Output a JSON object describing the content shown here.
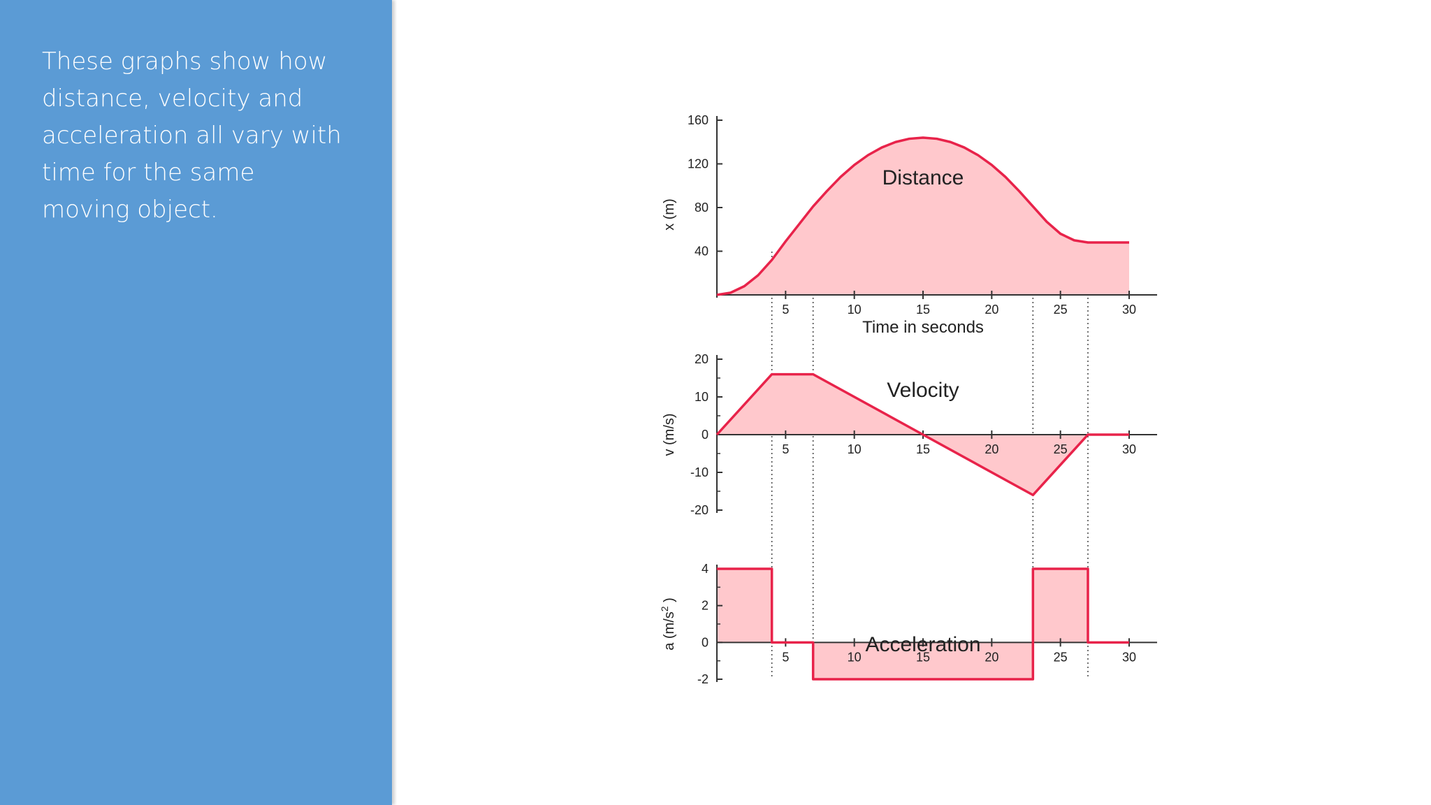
{
  "caption": "These graphs show how distance, velocity and acceleration all vary with time for the same moving object.",
  "colors": {
    "sidebar": "#5b9bd5",
    "line": "#e8234a",
    "fill": "#ffc8cc",
    "axis": "#333333"
  },
  "x_axis_label": "Time in seconds",
  "chart_data": [
    {
      "type": "area",
      "title": "Distance",
      "ylabel": "x (m)",
      "xlim": [
        0,
        30
      ],
      "ylim": [
        0,
        160
      ],
      "xticks": [
        5,
        10,
        15,
        20,
        25,
        30
      ],
      "yticks": [
        40,
        80,
        120,
        160
      ],
      "x": [
        0,
        1,
        2,
        3,
        4,
        5,
        6,
        7,
        8,
        9,
        10,
        11,
        12,
        13,
        14,
        15,
        16,
        17,
        18,
        19,
        20,
        21,
        22,
        23,
        24,
        25,
        26,
        27,
        28,
        29,
        30
      ],
      "y": [
        0,
        2,
        8,
        18,
        32,
        49,
        65,
        81,
        95,
        108,
        119,
        128,
        135,
        140,
        143,
        144,
        143,
        140,
        135,
        128,
        119,
        108,
        95,
        81,
        67,
        56,
        50,
        48,
        48,
        48,
        48
      ]
    },
    {
      "type": "area",
      "title": "Velocity",
      "ylabel": "v (m/s)",
      "xlim": [
        0,
        30
      ],
      "ylim": [
        -20,
        20
      ],
      "xticks": [
        5,
        10,
        15,
        20,
        25,
        30
      ],
      "yticks": [
        20,
        10,
        0,
        -10,
        -20
      ],
      "x": [
        0,
        4,
        7,
        15,
        23,
        27,
        30
      ],
      "y": [
        0,
        16,
        16,
        0,
        -16,
        0,
        0
      ]
    },
    {
      "type": "area",
      "title": "Acceleration",
      "ylabel": "a (m/s",
      "ylabel_sup": "2",
      "ylabel_end": ")",
      "xlim": [
        0,
        30
      ],
      "ylim": [
        -2,
        4
      ],
      "xticks": [
        5,
        10,
        15,
        20,
        25,
        30
      ],
      "yticks": [
        4,
        2,
        0,
        -2
      ],
      "x": [
        0,
        4,
        4,
        7,
        7,
        23,
        23,
        27,
        27,
        30
      ],
      "y": [
        4,
        4,
        0,
        0,
        -2,
        -2,
        4,
        4,
        0,
        0
      ]
    }
  ],
  "guides_x": [
    4,
    7,
    23,
    27
  ]
}
